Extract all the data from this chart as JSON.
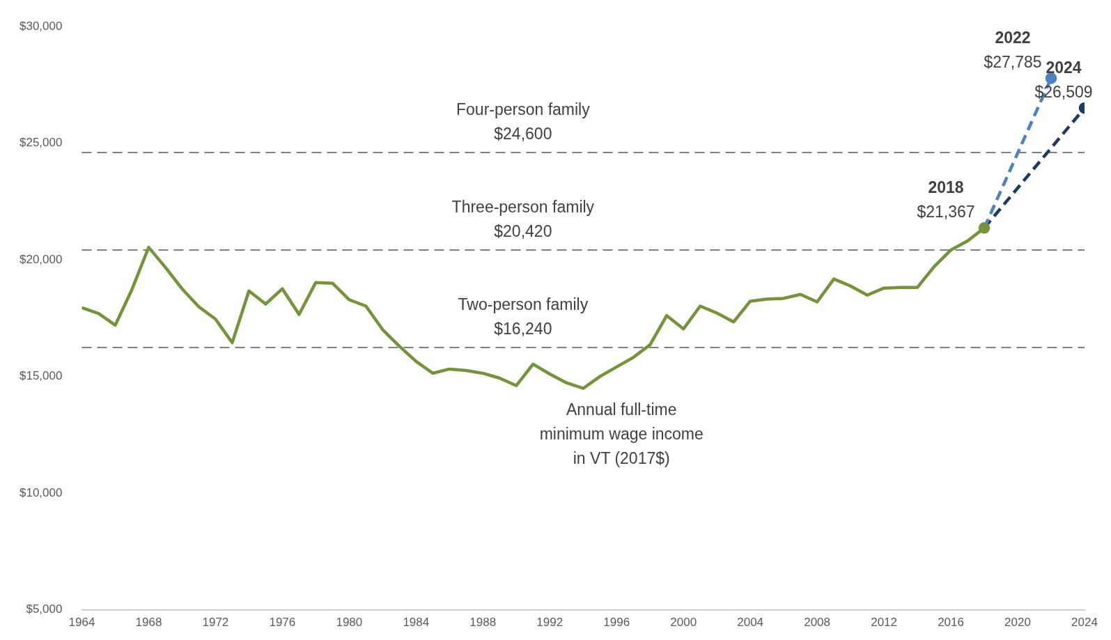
{
  "chart_data": {
    "type": "line",
    "xlim": [
      1964,
      2024
    ],
    "xticks": [
      1964,
      1968,
      1972,
      1976,
      1980,
      1984,
      1988,
      1992,
      1996,
      2000,
      2004,
      2008,
      2012,
      2016,
      2020,
      2024
    ],
    "ylim": [
      5000,
      30000
    ],
    "yticks": [
      {
        "value": 5000,
        "label": "$5,000"
      },
      {
        "value": 10000,
        "label": "$10,000"
      },
      {
        "value": 15000,
        "label": "$15,000"
      },
      {
        "value": 20000,
        "label": "$20,000"
      },
      {
        "value": 25000,
        "label": "$25,000"
      },
      {
        "value": 30000,
        "label": "$30,000"
      }
    ],
    "grid": false,
    "legend": false,
    "line_style": "solid",
    "series": [
      {
        "name": "Annual full-time\nminimum wage income\nin VT (2017$)",
        "color": "#76933c",
        "x": [
          1964,
          1965,
          1966,
          1967,
          1968,
          1969,
          1970,
          1971,
          1972,
          1973,
          1974,
          1975,
          1976,
          1977,
          1978,
          1979,
          1980,
          1981,
          1982,
          1983,
          1984,
          1985,
          1986,
          1987,
          1988,
          1989,
          1990,
          1991,
          1992,
          1993,
          1994,
          1995,
          1996,
          1997,
          1998,
          1999,
          2000,
          2001,
          2002,
          2003,
          2004,
          2005,
          2006,
          2007,
          2008,
          2009,
          2010,
          2011,
          2012,
          2013,
          2014,
          2015,
          2016,
          2017,
          2018
        ],
        "values": [
          17950,
          17700,
          17200,
          18730,
          20540,
          19680,
          18760,
          17990,
          17460,
          16450,
          18670,
          18110,
          18760,
          17660,
          19030,
          19000,
          18290,
          18020,
          17010,
          16300,
          15650,
          15140,
          15320,
          15260,
          15140,
          14930,
          14610,
          15530,
          15110,
          14730,
          14490,
          15000,
          15410,
          15820,
          16360,
          17610,
          17040,
          18020,
          17720,
          17340,
          18230,
          18320,
          18350,
          18520,
          18200,
          19180,
          18880,
          18490,
          18790,
          18820,
          18820,
          19710,
          20420,
          20810,
          21367
        ]
      },
      {
        "type": "scatter",
        "color": "#76933c",
        "x": [
          2018
        ],
        "values": [
          21367
        ],
        "marker": "circle"
      },
      {
        "color": "#4f81bd",
        "x": [
          2018,
          2022
        ],
        "values": [
          21367,
          27785
        ],
        "line_style": "dashed",
        "marker": "circle"
      },
      {
        "color": "#1f3864",
        "x": [
          2018,
          2024
        ],
        "values": [
          21367,
          26509
        ],
        "line_style": "dashed",
        "marker": "circle"
      }
    ],
    "ref_lines": [
      {
        "axis": "y",
        "value": 24600,
        "label": "Four-person family\n$24,600",
        "color": "#7f7f7f",
        "line_style": "dashed"
      },
      {
        "axis": "y",
        "value": 20420,
        "label": "Three-person family\n$20,420",
        "color": "#7f7f7f",
        "line_style": "dashed"
      },
      {
        "axis": "y",
        "value": 16240,
        "label": "Two-person family\n$16,240",
        "color": "#7f7f7f",
        "line_style": "dashed"
      }
    ],
    "annotations": [
      {
        "text": "2018\n$21,367",
        "x": 2018,
        "y": 21367
      },
      {
        "text": "2022\n$27,785",
        "x": 2022,
        "y": 27785
      },
      {
        "text": "2024\n$26,509",
        "x": 2024,
        "y": 26509
      }
    ]
  }
}
